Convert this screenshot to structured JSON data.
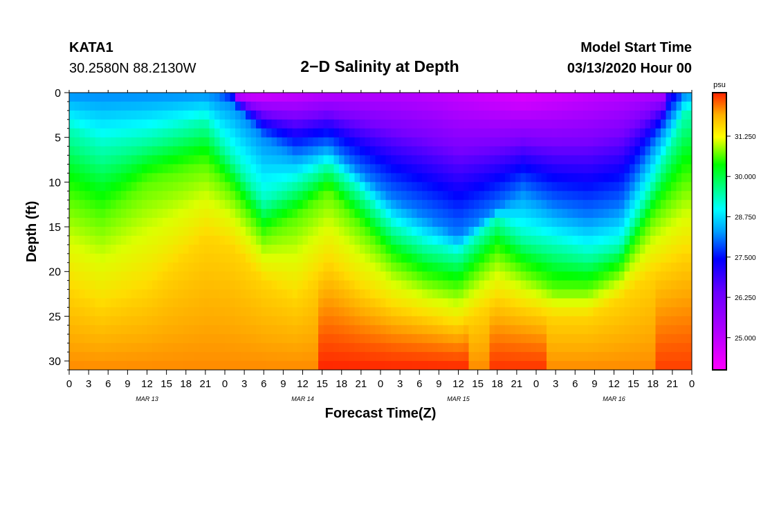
{
  "header": {
    "station": "KATA1",
    "coords": "30.2580N 88.2130W",
    "title": "2−D Salinity at Depth",
    "start_label": "Model Start Time",
    "start_value": "03/13/2020 Hour 00"
  },
  "chart_data": {
    "type": "heatmap",
    "title": "2−D Salinity at Depth",
    "xlabel": "Forecast Time(Z)",
    "ylabel": "Depth (ft)",
    "x_hours": [
      0,
      96
    ],
    "ylim": [
      0,
      31
    ],
    "y_ticks": [
      0,
      5,
      10,
      15,
      20,
      25,
      30
    ],
    "x_tick_labels": [
      "0",
      "3",
      "6",
      "9",
      "12",
      "15",
      "18",
      "21",
      "0",
      "3",
      "6",
      "9",
      "12",
      "15",
      "18",
      "21",
      "0",
      "3",
      "6",
      "9",
      "12",
      "15",
      "18",
      "21",
      "0",
      "3",
      "6",
      "9",
      "12",
      "15",
      "18",
      "21",
      "0"
    ],
    "date_labels": [
      {
        "hour": 12,
        "text": "MAR 13"
      },
      {
        "hour": 36,
        "text": "MAR 14"
      },
      {
        "hour": 60,
        "text": "MAR 15"
      },
      {
        "hour": 84,
        "text": "MAR 16"
      }
    ],
    "colorbar": {
      "unit": "psu",
      "min": 24.0,
      "max": 32.6,
      "tick_labels": [
        "31.250",
        "30.000",
        "28.750",
        "27.500",
        "26.250",
        "25.000"
      ],
      "tick_values": [
        31.25,
        30.0,
        28.75,
        27.5,
        26.25,
        25.0
      ]
    },
    "contour_depths_ft": {
      "description": "approximate depth of iso-salinity bands vs forecast hour",
      "hours": [
        0,
        5,
        12,
        21,
        25,
        30,
        35,
        40,
        45,
        50,
        55,
        60,
        66,
        70,
        75,
        80,
        85,
        90,
        95
      ],
      "top_of_27_5": [
        0,
        0,
        0,
        0,
        1,
        5,
        7,
        6,
        9,
        12,
        14,
        16,
        13,
        11,
        13,
        14,
        13,
        6,
        0
      ],
      "top_of_28_75": [
        4,
        6,
        5,
        3,
        7,
        12,
        10,
        8,
        11,
        15,
        17,
        18,
        14,
        16,
        17,
        18,
        17,
        10,
        2
      ],
      "top_of_30_0": [
        12,
        14,
        10,
        8,
        11,
        16,
        14,
        11,
        15,
        19,
        21,
        22,
        18,
        20,
        22,
        22,
        20,
        14,
        10
      ],
      "top_of_31_25": [
        22,
        24,
        22,
        16,
        17,
        21,
        23,
        19,
        22,
        24,
        25,
        26,
        23,
        24,
        25,
        25,
        23,
        20,
        18
      ]
    }
  }
}
